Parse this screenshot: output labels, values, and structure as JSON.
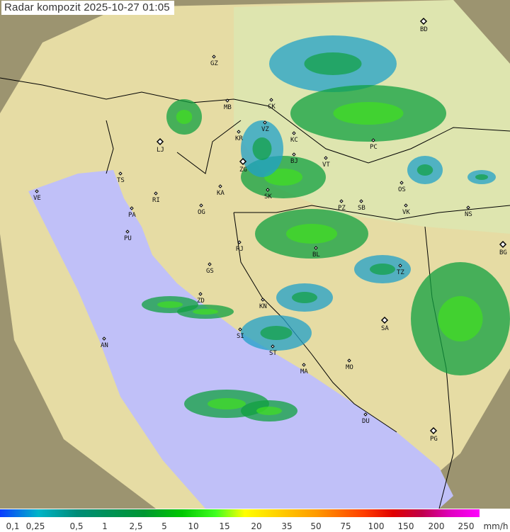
{
  "title": "Radar kompozit  2025-10-27   01:05",
  "colors": {
    "land": "#e9dfa8",
    "sea": "#c0c0f8",
    "coverage": "#d8ebb8",
    "outside": "#9c9470",
    "border": "#000000",
    "rain_light": "#20a0c8",
    "rain_mid": "#10a040",
    "rain_heavy": "#40e020",
    "rain_peak": "#e02020"
  },
  "cities": [
    {
      "code": "GZ"
    },
    {
      "code": "BD",
      "major": true
    },
    {
      "code": "MB"
    },
    {
      "code": "CK"
    },
    {
      "code": "LJ",
      "major": true
    },
    {
      "code": "KR"
    },
    {
      "code": "VZ"
    },
    {
      "code": "KC"
    },
    {
      "code": "PC"
    },
    {
      "code": "TS"
    },
    {
      "code": "ZG",
      "major": true
    },
    {
      "code": "BJ"
    },
    {
      "code": "VT"
    },
    {
      "code": "VE"
    },
    {
      "code": "RI"
    },
    {
      "code": "KA"
    },
    {
      "code": "SK"
    },
    {
      "code": "OS"
    },
    {
      "code": "PA"
    },
    {
      "code": "OG"
    },
    {
      "code": "PZ"
    },
    {
      "code": "SB"
    },
    {
      "code": "VK"
    },
    {
      "code": "NS"
    },
    {
      "code": "PU"
    },
    {
      "code": "RJ"
    },
    {
      "code": "BL"
    },
    {
      "code": "BG",
      "major": true
    },
    {
      "code": "GS"
    },
    {
      "code": "TZ"
    },
    {
      "code": "ZD"
    },
    {
      "code": "KN"
    },
    {
      "code": "AN"
    },
    {
      "code": "SI"
    },
    {
      "code": "SA",
      "major": true
    },
    {
      "code": "ST"
    },
    {
      "code": "MO"
    },
    {
      "code": "MA"
    },
    {
      "code": "DU"
    },
    {
      "code": "PG",
      "major": true
    }
  ],
  "legend": {
    "labels": [
      "0,1",
      "0,25",
      "0,5",
      "1",
      "2,5",
      "5",
      "10",
      "15",
      "20",
      "35",
      "50",
      "75",
      "100",
      "150",
      "200",
      "250"
    ],
    "unit": "mm/h"
  }
}
